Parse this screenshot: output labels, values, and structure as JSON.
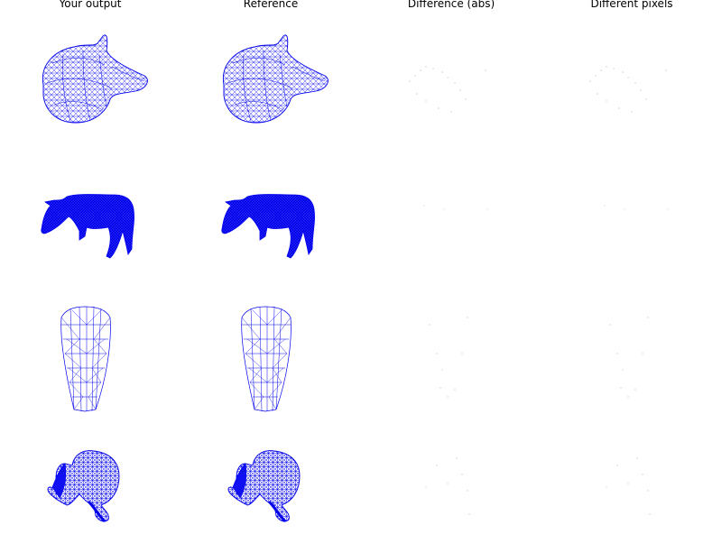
{
  "columns": [
    {
      "title": "Your output"
    },
    {
      "title": "Reference"
    },
    {
      "title": "Difference (abs)"
    },
    {
      "title": "Different pixels"
    }
  ],
  "rows": [
    {
      "mesh": "cup-wireframe"
    },
    {
      "mesh": "cow-dense-mesh"
    },
    {
      "mesh": "cone-wireframe"
    },
    {
      "mesh": "armadillo-mesh"
    }
  ],
  "colors": {
    "mesh_stroke": "#0000ee",
    "diff_speck": "#c8c8c8",
    "background": "#ffffff"
  }
}
